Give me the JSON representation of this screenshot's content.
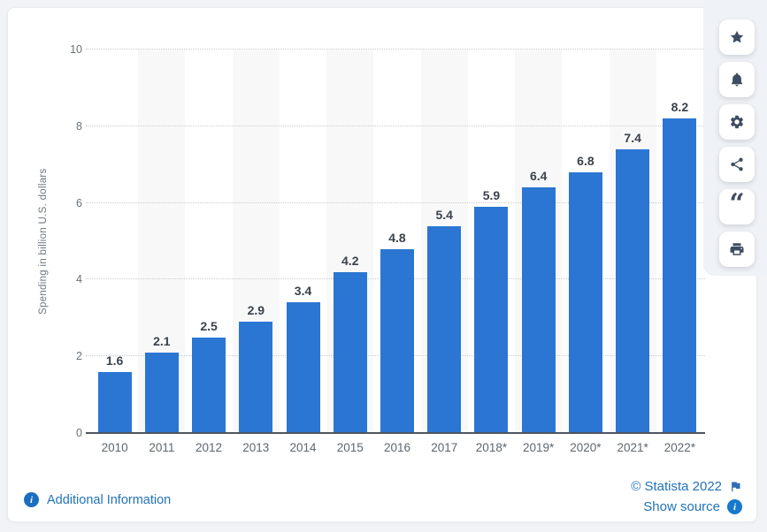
{
  "chart_data": {
    "type": "bar",
    "title": "",
    "xlabel": "",
    "ylabel": "Spending in billion U.S. dollars",
    "categories": [
      "2010",
      "2011",
      "2012",
      "2013",
      "2014",
      "2015",
      "2016",
      "2017",
      "2018*",
      "2019*",
      "2020*",
      "2021*",
      "2022*"
    ],
    "values": [
      1.6,
      2.1,
      2.5,
      2.9,
      3.4,
      4.2,
      4.8,
      5.4,
      5.9,
      6.4,
      6.8,
      7.4,
      8.2
    ],
    "ylim": [
      0,
      10
    ],
    "yticks": [
      0,
      2,
      4,
      6,
      8,
      10
    ],
    "grid": "horizontal-dotted",
    "legend": "none",
    "bar_color": "#2b76d3",
    "stripe_color": "#f8f8f9"
  },
  "theme": {
    "link_blue": "#2273b9",
    "icon_navy": "#3d4c61",
    "info_badge_blue": "#1b6fc0",
    "page_background": "#f1f3f6"
  },
  "toolbar": {
    "buttons": [
      {
        "name": "favorite",
        "icon": "star-icon"
      },
      {
        "name": "alerts",
        "icon": "bell-icon"
      },
      {
        "name": "settings",
        "icon": "gear-icon"
      },
      {
        "name": "share",
        "icon": "share-icon"
      },
      {
        "name": "cite",
        "icon": "quote-icon"
      },
      {
        "name": "print",
        "icon": "print-icon"
      }
    ]
  },
  "footer": {
    "additional_info_label": "Additional Information",
    "copyright_label": "© Statista 2022",
    "show_source_label": "Show source"
  }
}
